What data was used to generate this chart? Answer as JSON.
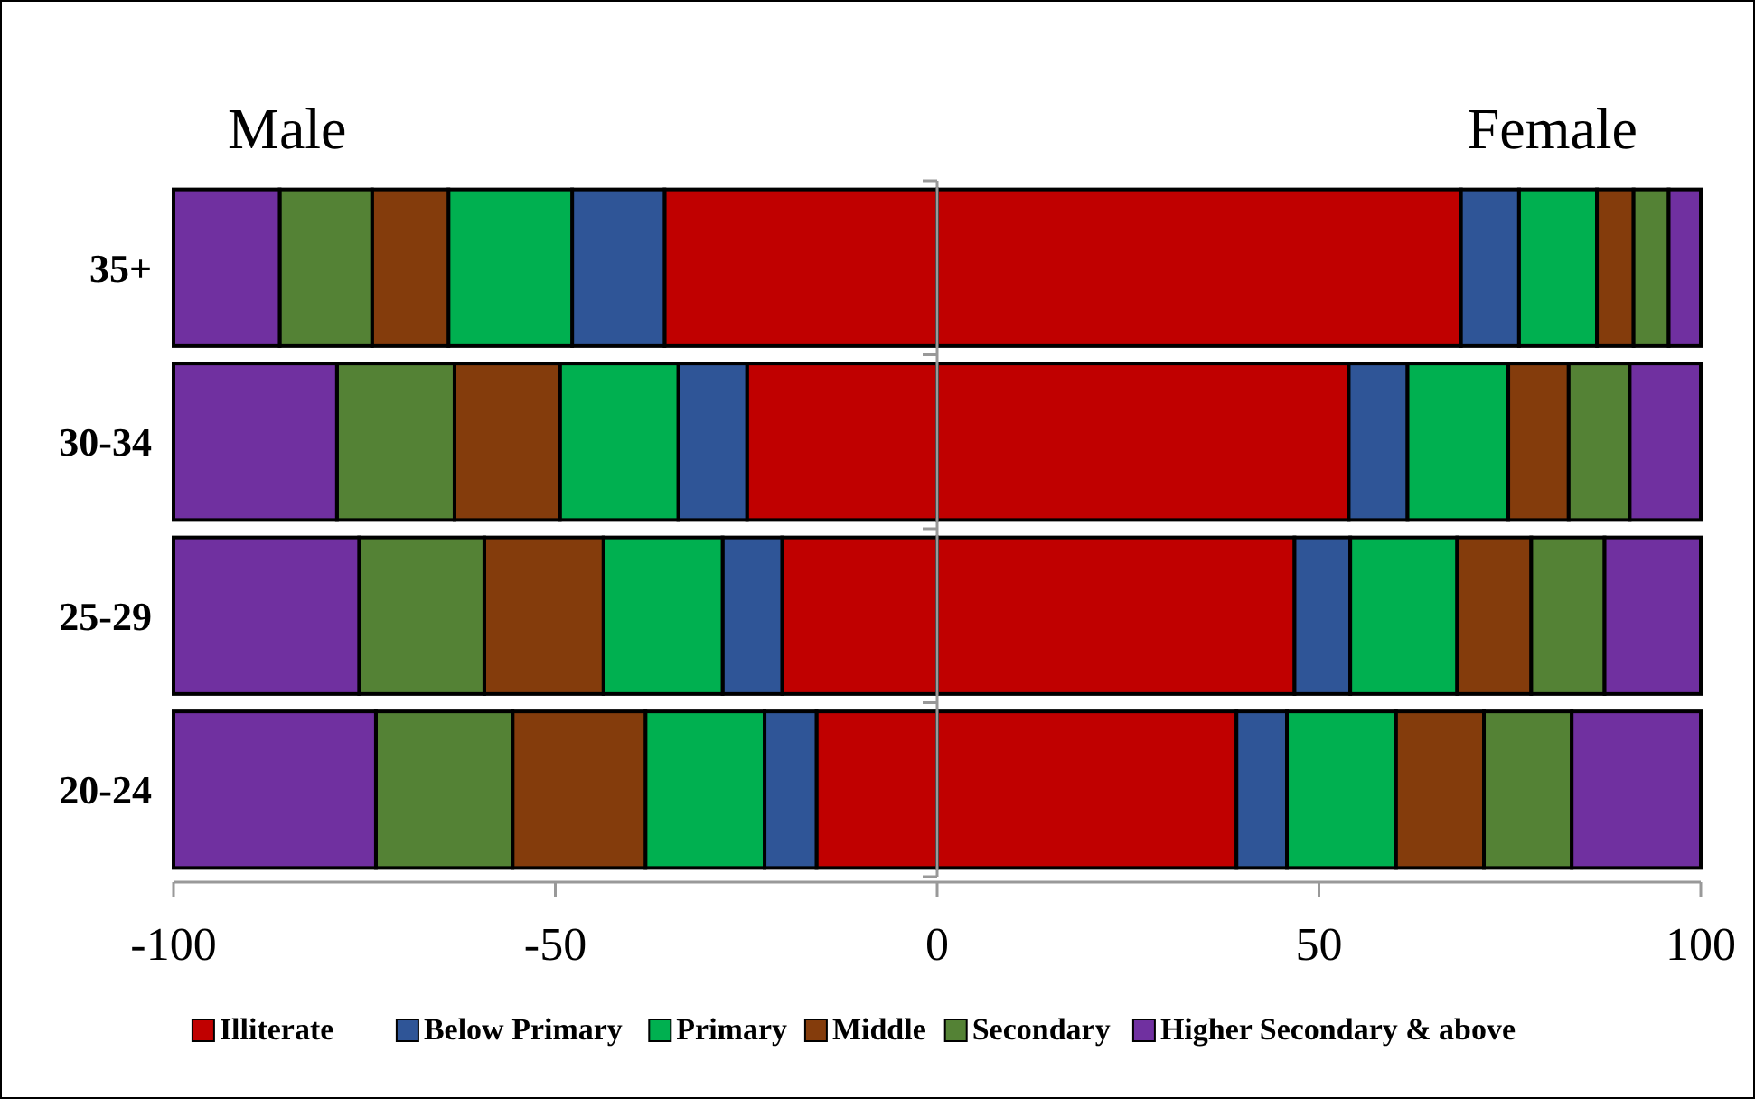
{
  "chart_data": {
    "type": "bar",
    "orientation": "horizontal",
    "stacked": true,
    "categories": [
      "35+",
      "30-34",
      "25-29",
      "20-24"
    ],
    "xlim": [
      -100,
      100
    ],
    "xticks": [
      -100,
      -50,
      0,
      50,
      100
    ],
    "legend": "bottom",
    "annotations": [
      "Male",
      "Female"
    ],
    "series": [
      {
        "color": "#c00000",
        "values": [
          -35.7,
          -24.9,
          -20.3,
          -15.8
        ]
      },
      {
        "color": "#2f5597",
        "values": [
          -12.1,
          -9.0,
          -7.8,
          -6.8
        ]
      },
      {
        "color": "#00b050",
        "values": [
          -16.2,
          -15.5,
          -15.6,
          -15.6
        ]
      },
      {
        "color": "#843c0c",
        "values": [
          -10.0,
          -13.8,
          -15.6,
          -17.4
        ]
      },
      {
        "color": "#548235",
        "values": [
          -12.1,
          -15.4,
          -16.4,
          -17.9
        ]
      },
      {
        "color": "#7030a0",
        "values": [
          -13.9,
          -21.4,
          -24.3,
          -26.5
        ]
      },
      {
        "name": "Illiterate",
        "color": "#c00000",
        "values": [
          68.6,
          53.9,
          46.8,
          39.2
        ]
      },
      {
        "name": "Below Primary",
        "color": "#2f5597",
        "values": [
          7.6,
          7.7,
          7.3,
          6.6
        ]
      },
      {
        "name": "Primary",
        "color": "#00b050",
        "values": [
          10.2,
          13.2,
          14.0,
          14.3
        ]
      },
      {
        "name": "Middle",
        "color": "#843c0c",
        "values": [
          4.8,
          7.9,
          9.7,
          11.5
        ]
      },
      {
        "name": "Secondary",
        "color": "#548235",
        "values": [
          4.6,
          8.0,
          9.6,
          11.5
        ]
      },
      {
        "name": "Higher Secondary & above",
        "color": "#7030a0",
        "values": [
          4.2,
          9.3,
          12.6,
          16.9
        ]
      }
    ]
  }
}
